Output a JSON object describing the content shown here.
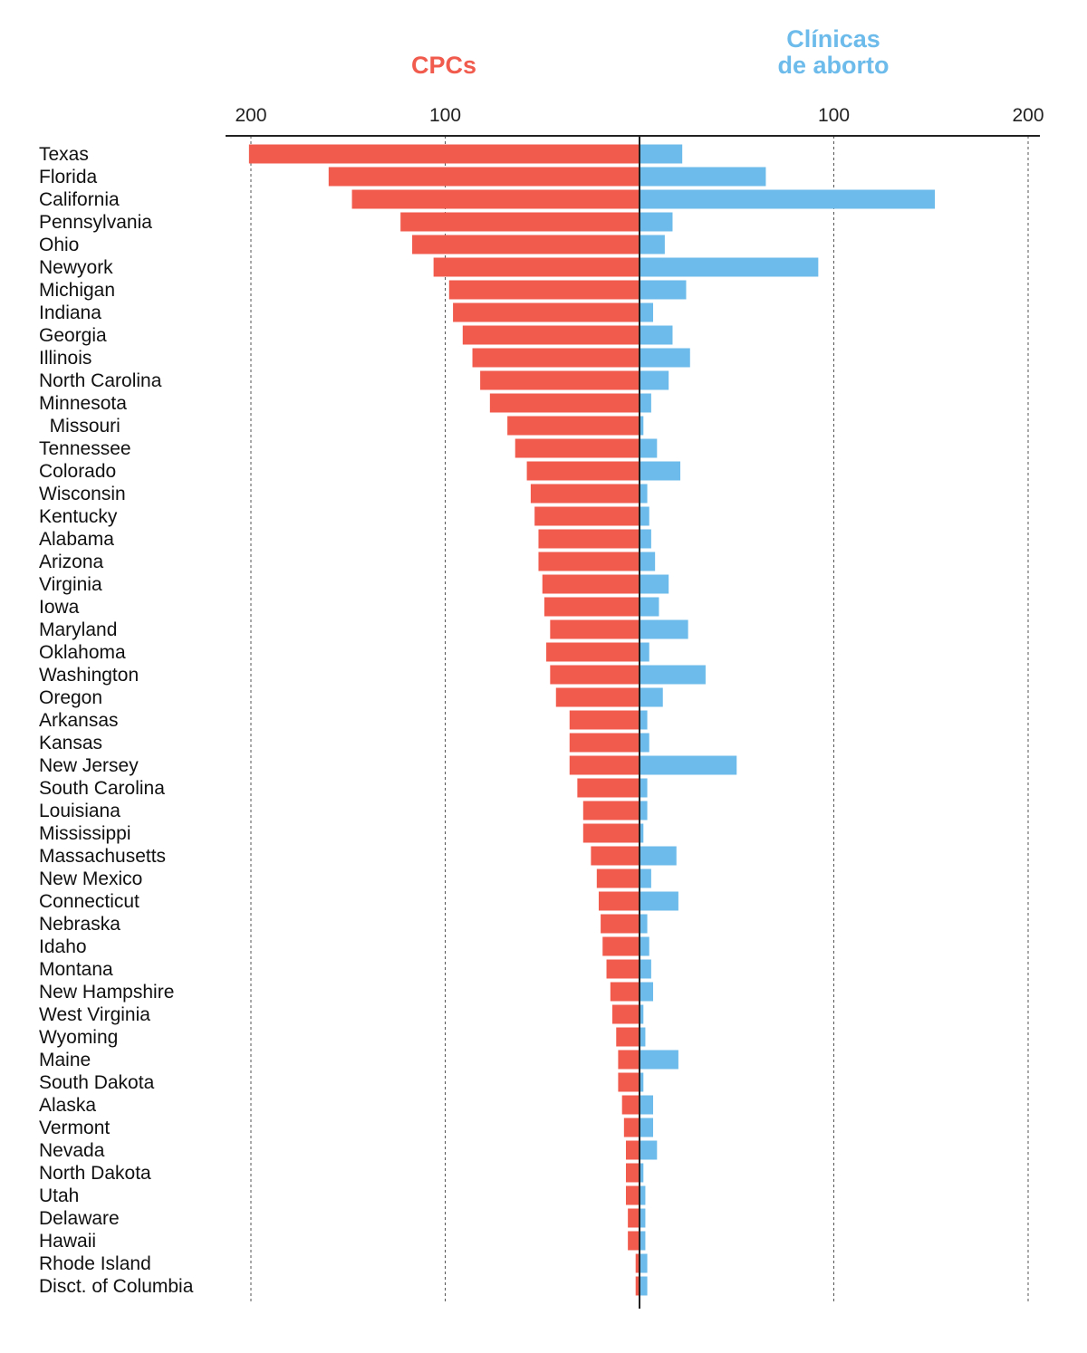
{
  "colors": {
    "cpc": "#F05B4E",
    "clinic": "#6CBBEA",
    "axis": "#222222",
    "grid": "#555555"
  },
  "chart_data": {
    "type": "bar",
    "orientation": "horizontal-diverging",
    "title": "",
    "xlabel": "",
    "ylabel": "",
    "xlim": [
      -200,
      200
    ],
    "grid": true,
    "tick_labels": [
      "200",
      "100",
      "100",
      "200"
    ],
    "categories": [
      "Texas",
      "Florida",
      "California",
      "Pennsylvania",
      "Ohio",
      "Newyork",
      "Michigan",
      "Indiana",
      "Georgia",
      "Illinois",
      "North Carolina",
      "Minnesota",
      " Missouri",
      "Tennessee",
      "Colorado",
      "Wisconsin",
      "Kentucky",
      "Alabama",
      "Arizona",
      "Virginia",
      "Iowa",
      "Maryland",
      "Oklahoma",
      "Washington",
      "Oregon",
      "Arkansas",
      "Kansas",
      "New Jersey",
      "South Carolina",
      "Louisiana",
      "Mississippi",
      "Massachusetts",
      "New Mexico",
      "Connecticut",
      "Nebraska",
      "Idaho",
      "Montana",
      "New Hampshire",
      "West Virginia",
      "Wyoming",
      "Maine",
      "South Dakota",
      "Alaska",
      "Vermont",
      "Nevada",
      "North Dakota",
      "Utah",
      "Delaware",
      "Hawaii",
      "Rhode Island",
      "Disct. of Columbia"
    ],
    "series": [
      {
        "name": "CPCs",
        "side": "left",
        "values": [
          201,
          160,
          148,
          123,
          117,
          106,
          98,
          96,
          91,
          86,
          82,
          77,
          68,
          64,
          58,
          56,
          54,
          52,
          52,
          50,
          49,
          46,
          48,
          46,
          43,
          36,
          36,
          36,
          32,
          29,
          29,
          25,
          22,
          21,
          20,
          19,
          17,
          15,
          14,
          12,
          11,
          11,
          9,
          8,
          7,
          7,
          7,
          6,
          6,
          2,
          2
        ]
      },
      {
        "name": "Clínicas\nde aborto",
        "side": "right",
        "values": [
          22,
          65,
          152,
          17,
          13,
          92,
          24,
          7,
          17,
          26,
          15,
          6,
          2,
          9,
          21,
          4,
          5,
          6,
          8,
          15,
          10,
          25,
          5,
          34,
          12,
          4,
          5,
          50,
          4,
          4,
          2,
          19,
          6,
          20,
          4,
          5,
          6,
          7,
          2,
          3,
          20,
          2,
          7,
          7,
          9,
          2,
          3,
          3,
          3,
          4,
          4
        ]
      }
    ]
  }
}
